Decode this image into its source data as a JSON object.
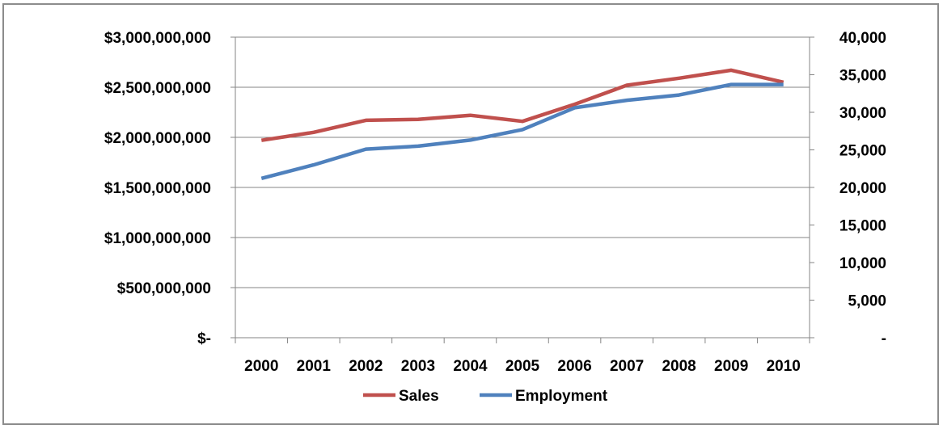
{
  "chart_data": {
    "type": "line",
    "title": "",
    "xlabel": "",
    "ylabel": "",
    "categories": [
      "2000",
      "2001",
      "2002",
      "2003",
      "2004",
      "2005",
      "2006",
      "2007",
      "2008",
      "2009",
      "2010"
    ],
    "series": [
      {
        "name": "Sales",
        "axis": "left",
        "color": "#c0504d",
        "values": [
          1970000000,
          2050000000,
          2170000000,
          2180000000,
          2220000000,
          2160000000,
          2330000000,
          2520000000,
          2590000000,
          2670000000,
          2550000000
        ]
      },
      {
        "name": "Employment",
        "axis": "right",
        "color": "#4f81bd",
        "values": [
          21200,
          23000,
          25100,
          25500,
          26300,
          27700,
          30600,
          31600,
          32300,
          33700,
          33700
        ]
      }
    ],
    "y_left": {
      "ylim": [
        0,
        3000000000
      ],
      "ticks": [
        0,
        500000000,
        1000000000,
        1500000000,
        2000000000,
        2500000000,
        3000000000
      ],
      "tick_labels": [
        "$-",
        "$500,000,000",
        "$1,000,000,000",
        "$1,500,000,000",
        "$2,000,000,000",
        "$2,500,000,000",
        "$3,000,000,000"
      ]
    },
    "y_right": {
      "ylim": [
        0,
        40000
      ],
      "ticks": [
        0,
        5000,
        10000,
        15000,
        20000,
        25000,
        30000,
        35000,
        40000
      ],
      "tick_labels": [
        "-",
        "5,000",
        "10,000",
        "15,000",
        "20,000",
        "25,000",
        "30,000",
        "35,000",
        "40,000"
      ]
    },
    "grid": true,
    "legend_position": "bottom"
  }
}
